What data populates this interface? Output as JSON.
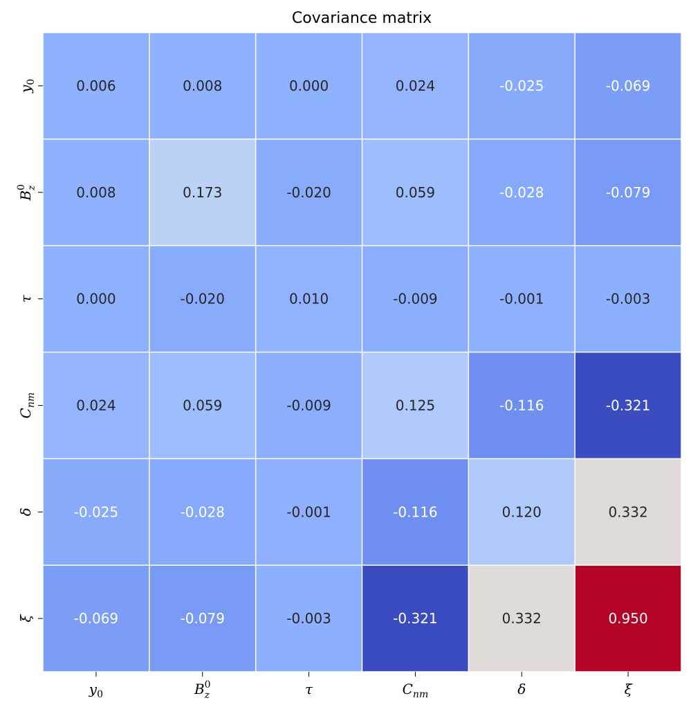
{
  "chart_data": {
    "type": "heatmap",
    "title": "Covariance matrix",
    "colormap": "coolwarm",
    "grid": false,
    "legend": "none",
    "x_labels": [
      {
        "base": "y",
        "sub": "0",
        "sup": ""
      },
      {
        "base": "B",
        "sub": "z",
        "sup": "0"
      },
      {
        "base": "τ",
        "sub": "",
        "sup": ""
      },
      {
        "base": "C",
        "sub": "nm",
        "sup": ""
      },
      {
        "base": "δ",
        "sub": "",
        "sup": ""
      },
      {
        "base": "ξ",
        "sub": "",
        "sup": ""
      }
    ],
    "y_labels": [
      {
        "base": "y",
        "sub": "0",
        "sup": ""
      },
      {
        "base": "B",
        "sub": "z",
        "sup": "0"
      },
      {
        "base": "τ",
        "sub": "",
        "sup": ""
      },
      {
        "base": "C",
        "sub": "nm",
        "sup": ""
      },
      {
        "base": "δ",
        "sub": "",
        "sup": ""
      },
      {
        "base": "ξ",
        "sub": "",
        "sup": ""
      }
    ],
    "values": [
      [
        "0.006",
        "0.008",
        "0.000",
        "0.024",
        "-0.025",
        "-0.069"
      ],
      [
        "0.008",
        "0.173",
        "-0.020",
        "0.059",
        "-0.028",
        "-0.079"
      ],
      [
        "0.000",
        "-0.020",
        "0.010",
        "-0.009",
        "-0.001",
        "-0.003"
      ],
      [
        "0.024",
        "0.059",
        "-0.009",
        "0.125",
        "-0.116",
        "-0.321"
      ],
      [
        "-0.025",
        "-0.028",
        "-0.001",
        "-0.116",
        "0.120",
        "0.332"
      ],
      [
        "-0.069",
        "-0.079",
        "-0.003",
        "-0.321",
        "0.332",
        "0.950"
      ]
    ],
    "vmin": -0.321,
    "vmax": 0.95,
    "colors": {
      "low": "#3b4cc0",
      "high": "#b40426",
      "text_dark": "#262626",
      "text_light": "#ffffff",
      "gap": "#ffffff"
    }
  }
}
